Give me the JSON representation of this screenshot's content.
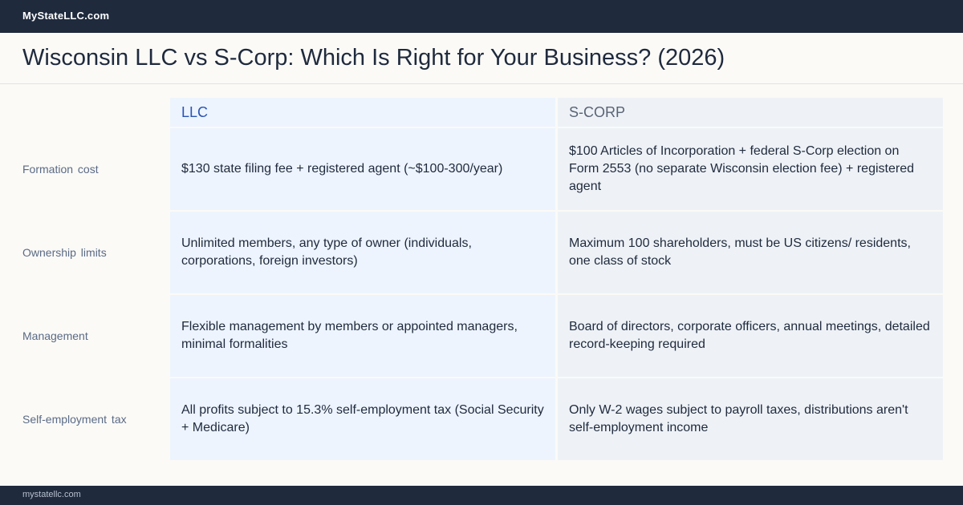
{
  "header": {
    "brand": "MyStateLLC.com"
  },
  "page": {
    "title": "Wisconsin LLC vs S-Corp: Which Is Right for Your Business? (2026)"
  },
  "comparison": {
    "columns": [
      "LLC",
      "S-CORP"
    ],
    "rows": [
      {
        "label": "Formation cost",
        "llc": "$130 state filing fee + registered agent (~$100-300/year)",
        "scorp": "$100 Articles of Incorporation + federal S-Corp election on Form 2553 (no separate Wisconsin election fee) + registered agent"
      },
      {
        "label": "Ownership limits",
        "llc": "Unlimited members, any type of owner (individuals, corporations, foreign investors)",
        "scorp": "Maximum 100 shareholders, must be US citizens/ residents, one class of stock"
      },
      {
        "label": "Management",
        "llc": "Flexible management by members or appointed managers, minimal formalities",
        "scorp": "Board of directors, corporate officers, annual meetings, detailed record-keeping required"
      },
      {
        "label": "Self-employment tax",
        "llc": "All profits subject to 15.3% self-employment tax (Social Security + Medicare)",
        "scorp": "Only W-2 wages subject to payroll taxes, distributions aren't self-employment income"
      }
    ]
  },
  "footer": {
    "domain": "mystatellc.com"
  }
}
